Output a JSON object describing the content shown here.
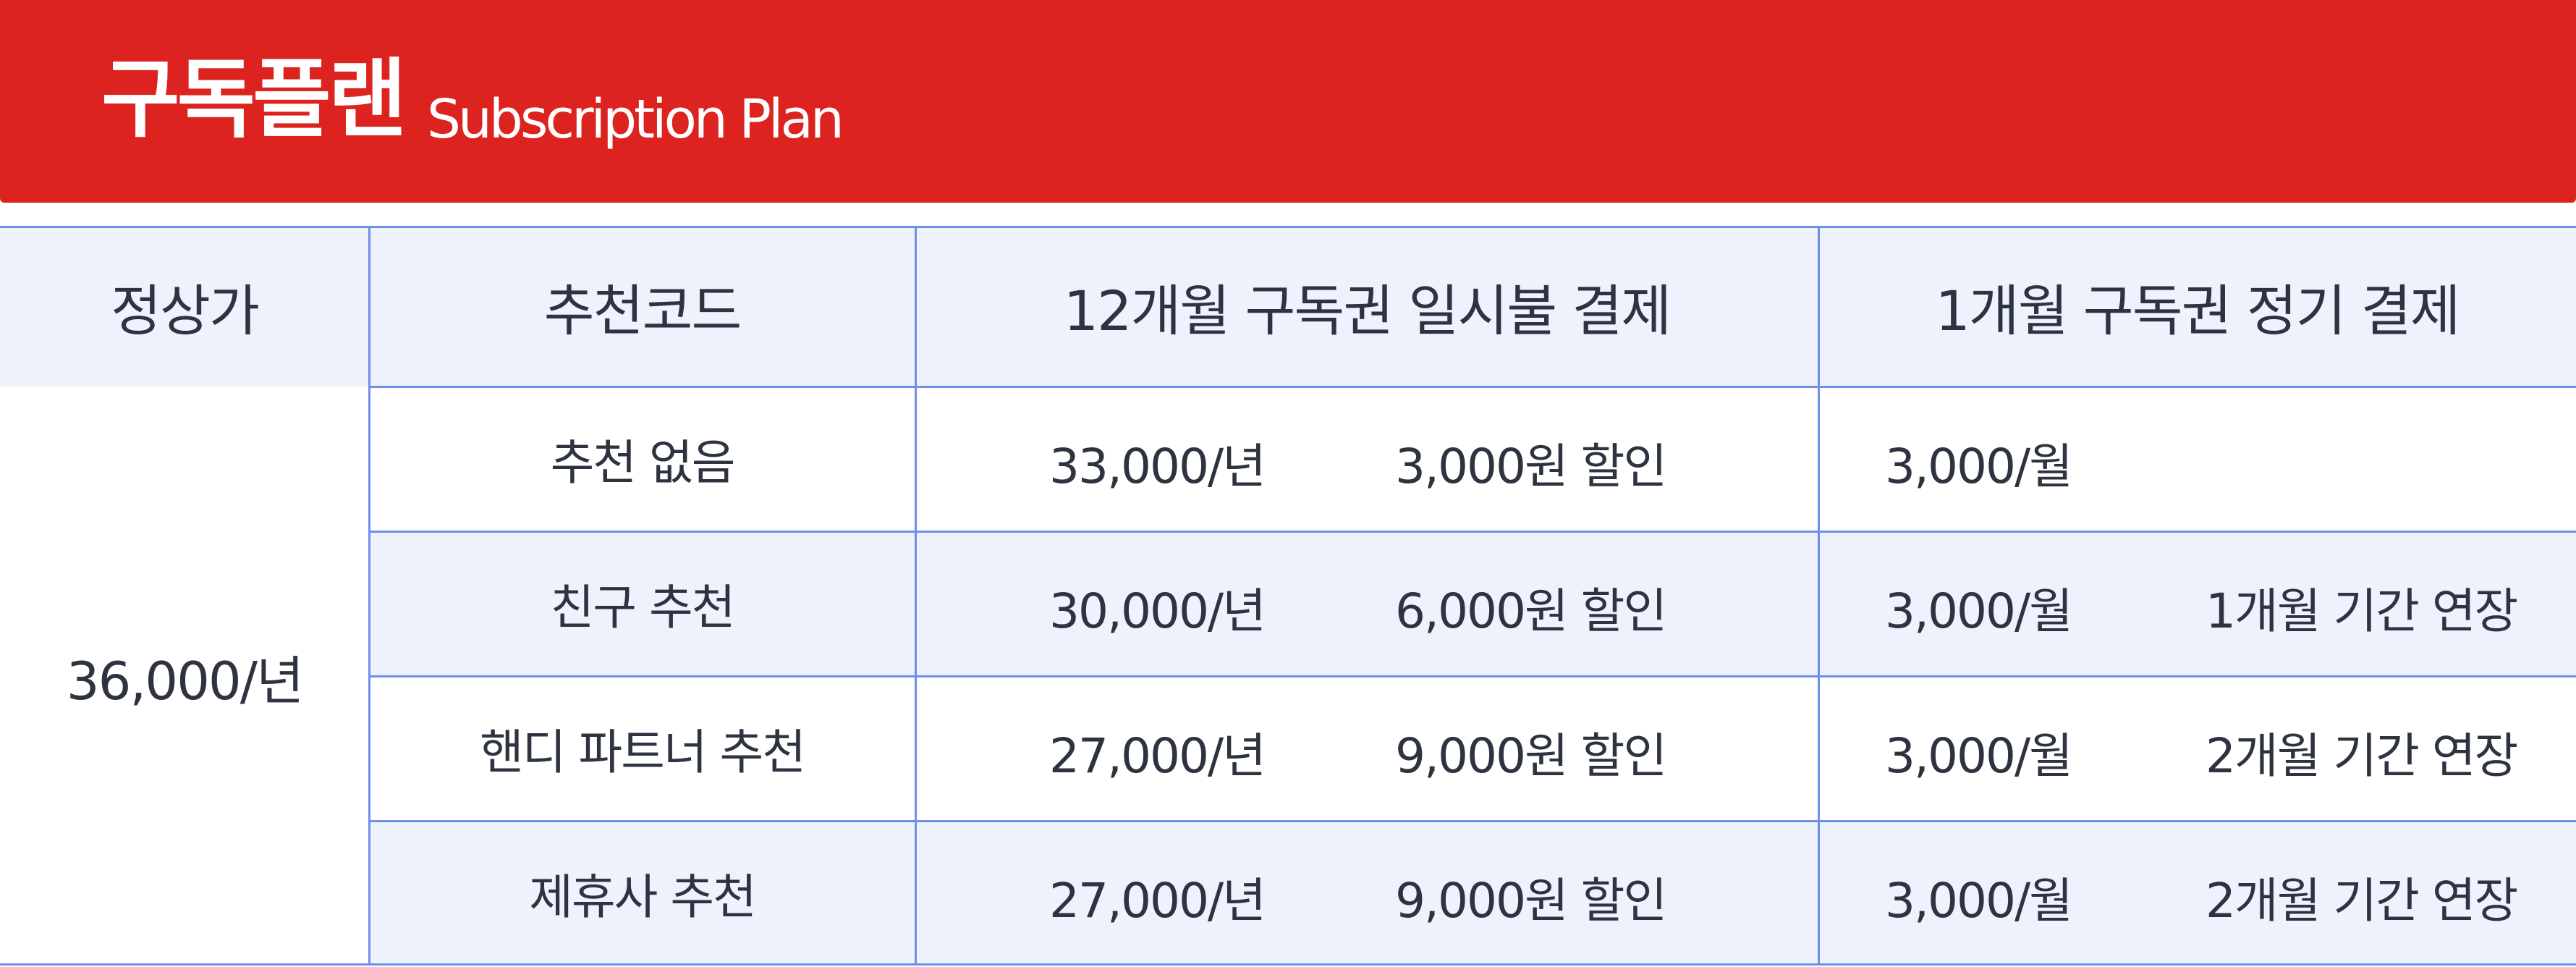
{
  "header": {
    "title": "구독플랜",
    "subtitle": "Subscription Plan"
  },
  "columns": [
    "정상가",
    "추천코드",
    "12개월 구독권 일시불 결제",
    "1개월 구독권  정기 결제"
  ],
  "regular_price": "36,000/년",
  "rows": [
    {
      "code": "추천 없음",
      "annual_price": "33,000/년",
      "annual_discount": "3,000원 할인",
      "monthly_price": "3,000/월",
      "monthly_benefit": ""
    },
    {
      "code": "친구 추천",
      "annual_price": "30,000/년",
      "annual_discount": "6,000원 할인",
      "monthly_price": "3,000/월",
      "monthly_benefit": "1개월 기간 연장"
    },
    {
      "code": "핸디 파트너 추천",
      "annual_price": "27,000/년",
      "annual_discount": "9,000원 할인",
      "monthly_price": "3,000/월",
      "monthly_benefit": "2개월 기간 연장"
    },
    {
      "code": "제휴사 추천",
      "annual_price": "27,000/년",
      "annual_discount": "9,000원 할인",
      "monthly_price": "3,000/월",
      "monthly_benefit": "2개월 기간 연장"
    }
  ],
  "colors": {
    "banner": "#dc231f",
    "header_fill": "#edf2fd",
    "grid_line": "#6f8fe8",
    "text": "#2d3440"
  }
}
